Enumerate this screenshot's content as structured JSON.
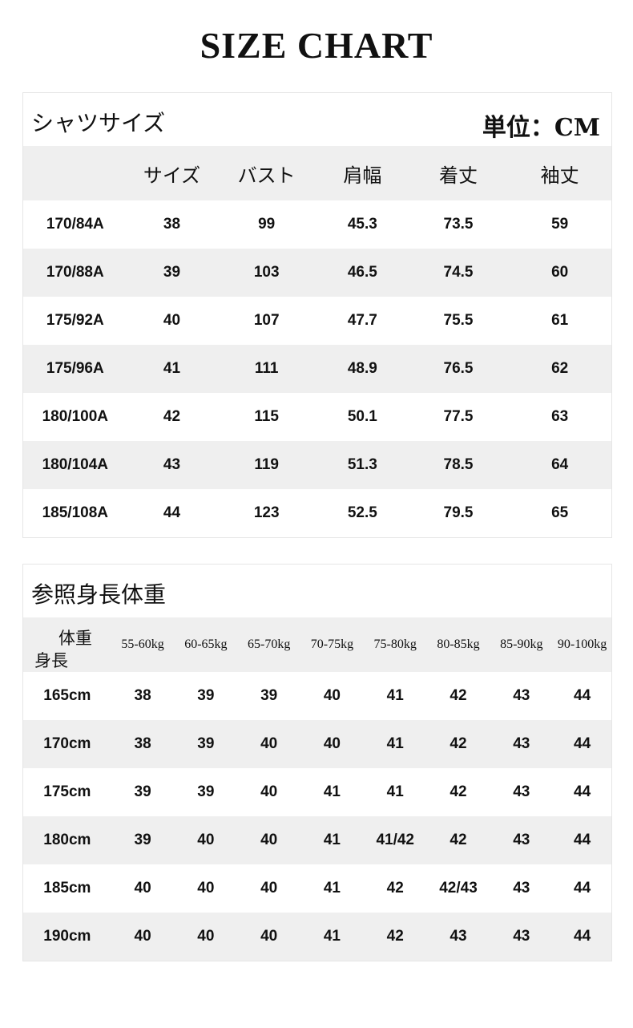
{
  "title": "SIZE CHART",
  "shirt": {
    "title": "シャツサイズ",
    "unit": "単位：CM",
    "headers": [
      "",
      "サイズ",
      "バスト",
      "肩幅",
      "着丈",
      "袖丈"
    ],
    "rows": [
      [
        "170/84A",
        "38",
        "99",
        "45.3",
        "73.5",
        "59"
      ],
      [
        "170/88A",
        "39",
        "103",
        "46.5",
        "74.5",
        "60"
      ],
      [
        "175/92A",
        "40",
        "107",
        "47.7",
        "75.5",
        "61"
      ],
      [
        "175/96A",
        "41",
        "111",
        "48.9",
        "76.5",
        "62"
      ],
      [
        "180/100A",
        "42",
        "115",
        "50.1",
        "77.5",
        "63"
      ],
      [
        "180/104A",
        "43",
        "119",
        "51.3",
        "78.5",
        "64"
      ],
      [
        "185/108A",
        "44",
        "123",
        "52.5",
        "79.5",
        "65"
      ]
    ]
  },
  "ref": {
    "title": "参照身長体重",
    "corner_weight": "体重",
    "corner_height": "身長",
    "headers": [
      "55-60kg",
      "60-65kg",
      "65-70kg",
      "70-75kg",
      "75-80kg",
      "80-85kg",
      "85-90kg",
      "90-100kg"
    ],
    "rows": [
      [
        "165cm",
        "38",
        "39",
        "39",
        "40",
        "41",
        "42",
        "43",
        "44"
      ],
      [
        "170cm",
        "38",
        "39",
        "40",
        "40",
        "41",
        "42",
        "43",
        "44"
      ],
      [
        "175cm",
        "39",
        "39",
        "40",
        "41",
        "41",
        "42",
        "43",
        "44"
      ],
      [
        "180cm",
        "39",
        "40",
        "40",
        "41",
        "41/42",
        "42",
        "43",
        "44"
      ],
      [
        "185cm",
        "40",
        "40",
        "40",
        "41",
        "42",
        "42/43",
        "43",
        "44"
      ],
      [
        "190cm",
        "40",
        "40",
        "40",
        "41",
        "42",
        "43",
        "43",
        "44"
      ]
    ]
  }
}
